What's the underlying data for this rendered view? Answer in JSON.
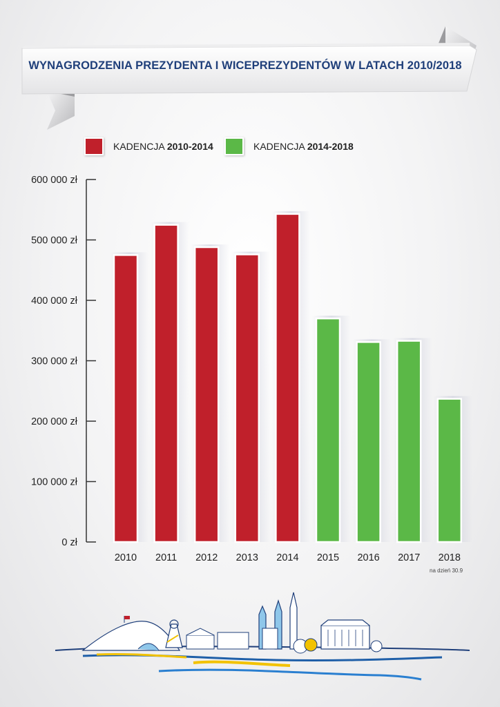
{
  "title": "WYNAGRODZENIA PREZYDENTA I WICEPREZYDENTÓW W LATACH 2010/2018",
  "legend": [
    {
      "prefix": "KADENCJA ",
      "bold": "2010-2014",
      "color": "#c0202b"
    },
    {
      "prefix": "KADENCJA ",
      "bold": "2014-2018",
      "color": "#5bb847"
    }
  ],
  "footnote": "na dzień 30.9",
  "chart_data": {
    "type": "bar",
    "categories": [
      "2010",
      "2011",
      "2012",
      "2013",
      "2014",
      "2015",
      "2016",
      "2017",
      "2018"
    ],
    "values": [
      475000,
      525000,
      488000,
      476000,
      543000,
      370000,
      331000,
      333000,
      237000
    ],
    "bar_colors": [
      "#c0202b",
      "#c0202b",
      "#c0202b",
      "#c0202b",
      "#c0202b",
      "#5bb847",
      "#5bb847",
      "#5bb847",
      "#5bb847"
    ],
    "ylim": [
      0,
      600000
    ],
    "y_ticks": [
      0,
      100000,
      200000,
      300000,
      400000,
      500000,
      600000
    ],
    "y_tick_labels": [
      "0 zł",
      "100 000 zł",
      "200 000 zł",
      "300 000 zł",
      "400 000 zł",
      "500 000 zł",
      "600 000 zł"
    ],
    "title": "WYNAGRODZENIA PREZYDENTA I WICEPREZYDENTÓW W LATACH 2010/2018",
    "xlabel": "",
    "ylabel": "",
    "legend_position": "top"
  }
}
